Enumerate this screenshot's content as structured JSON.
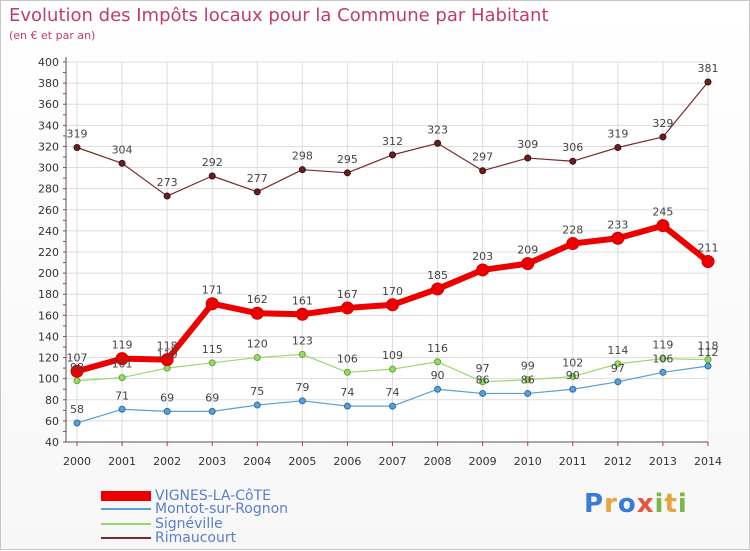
{
  "title": "Evolution des Impôts locaux pour la Commune par Habitant",
  "subtitle": "(en € et par an)",
  "logo": {
    "letters": [
      "P",
      "r",
      "o",
      "x",
      "i",
      "t",
      "i"
    ],
    "colors": [
      "#3a7bd5",
      "#e8a33d",
      "#3a7bd5",
      "#e8543d",
      "#7ab648",
      "#e8a33d",
      "#7ab648"
    ]
  },
  "chart_data": {
    "type": "line",
    "x": [
      2000,
      2001,
      2002,
      2003,
      2004,
      2005,
      2006,
      2007,
      2008,
      2009,
      2010,
      2011,
      2012,
      2013,
      2014
    ],
    "ylim": [
      40,
      400
    ],
    "yticks": [
      40,
      60,
      80,
      100,
      120,
      140,
      160,
      180,
      200,
      220,
      240,
      260,
      280,
      300,
      320,
      340,
      360,
      380,
      400
    ],
    "grid": true,
    "legend_position": "bottom-left",
    "series": [
      {
        "name": "VIGNES-LA-CôTE",
        "color": "#ee0000",
        "values": [
          107,
          119,
          118,
          171,
          162,
          161,
          167,
          170,
          185,
          203,
          209,
          228,
          233,
          245,
          211
        ]
      },
      {
        "name": "Montot-sur-Rognon",
        "color": "#5a9fd6",
        "values": [
          58,
          71,
          69,
          69,
          75,
          79,
          74,
          74,
          90,
          86,
          86,
          90,
          97,
          106,
          112
        ]
      },
      {
        "name": "Signéville",
        "color": "#99d96b",
        "values": [
          98,
          101,
          110,
          115,
          120,
          123,
          106,
          109,
          116,
          97,
          99,
          102,
          114,
          119,
          118
        ]
      },
      {
        "name": "Rimaucourt",
        "color": "#7a2a2a",
        "values": [
          319,
          304,
          273,
          292,
          277,
          298,
          295,
          312,
          323,
          297,
          309,
          306,
          319,
          329,
          381
        ]
      }
    ]
  }
}
